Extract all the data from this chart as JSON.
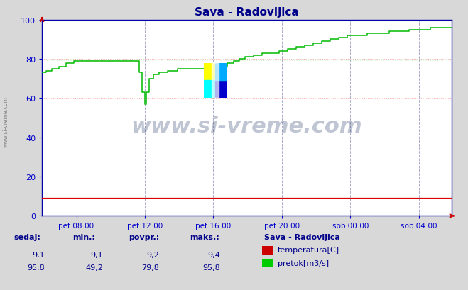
{
  "title": "Sava - Radovljica",
  "title_color": "#00008B",
  "bg_color": "#d8d8d8",
  "plot_bg_color": "#ffffff",
  "grid_color_h": "#ffaaaa",
  "grid_color_v": "#aaaacc",
  "hline_y": 79.8,
  "hline_color": "#00aa00",
  "ylim": [
    0,
    100
  ],
  "yticks": [
    0,
    20,
    40,
    60,
    80,
    100
  ],
  "ylabel_color": "#0000cc",
  "xlabel_color": "#0000cc",
  "temp_color": "#dd0000",
  "flow_color": "#00bb00",
  "watermark_text": "www.si-vreme.com",
  "watermark_color": "#1a3060",
  "watermark_alpha": 0.28,
  "xtick_labels": [
    "pet 08:00",
    "pet 12:00",
    "pet 16:00",
    "pet 20:00",
    "sob 00:00",
    "sob 04:00"
  ],
  "n_points": 288,
  "temp_sedaj": 9.1,
  "temp_min": 9.1,
  "temp_povpr": 9.2,
  "temp_maks": 9.4,
  "flow_sedaj": 95.8,
  "flow_min": 49.2,
  "flow_povpr": 79.8,
  "flow_maks": 95.8,
  "table_label_color": "#00008B",
  "table_value_color": "#00008B",
  "legend_title": "Sava - Radovljica",
  "legend_title_color": "#00008B",
  "red_rect_color": "#cc0000",
  "green_rect_color": "#00cc00",
  "legend_text_color": "#00008B",
  "spine_color": "#0000aa",
  "arrow_color": "#cc0000"
}
